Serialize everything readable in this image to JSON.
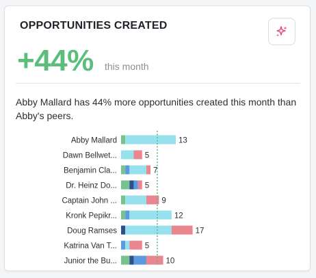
{
  "card": {
    "title": "OPPORTUNITIES CREATED",
    "metric": "+44%",
    "metric_period": "this month",
    "summary": "Abby Mallard has 44% more opportunities created this month than Abby's peers.",
    "ai_icon": "sparkle-icon"
  },
  "colors": {
    "green": "#77c390",
    "navy": "#2f4f8a",
    "blue": "#5b9ae0",
    "cyan": "#97e0ee",
    "pink": "#ea8690",
    "accent": "#5cbd7c",
    "sparkle": "#e0457b"
  },
  "chart_data": {
    "type": "bar",
    "orientation": "horizontal",
    "stacked": true,
    "average_line": "dotted-green",
    "categories": [
      "Abby Mallard",
      "Dawn Bellwet...",
      "Benjamin Cla...",
      "Dr. Heinz Do...",
      "Captain John ...",
      "Kronk Pepikr...",
      "Doug Ramses",
      "Katrina Van T...",
      "Junior the Bu..."
    ],
    "totals": [
      13,
      5,
      7,
      5,
      9,
      12,
      17,
      5,
      10
    ],
    "segment_colors": [
      "green",
      "navy",
      "blue",
      "cyan",
      "pink"
    ],
    "segments": [
      [
        1,
        0,
        0,
        12,
        0
      ],
      [
        0,
        0,
        0,
        3,
        2
      ],
      [
        1,
        0,
        1,
        4,
        1
      ],
      [
        2,
        1,
        1,
        0,
        1
      ],
      [
        1,
        0,
        0,
        5,
        3
      ],
      [
        1,
        0,
        1,
        10,
        0
      ],
      [
        0,
        1,
        0,
        11,
        5
      ],
      [
        0,
        0,
        1,
        1,
        3
      ],
      [
        2,
        1,
        3,
        0,
        4
      ]
    ],
    "average": 8.6,
    "xlim": [
      0,
      17
    ]
  }
}
